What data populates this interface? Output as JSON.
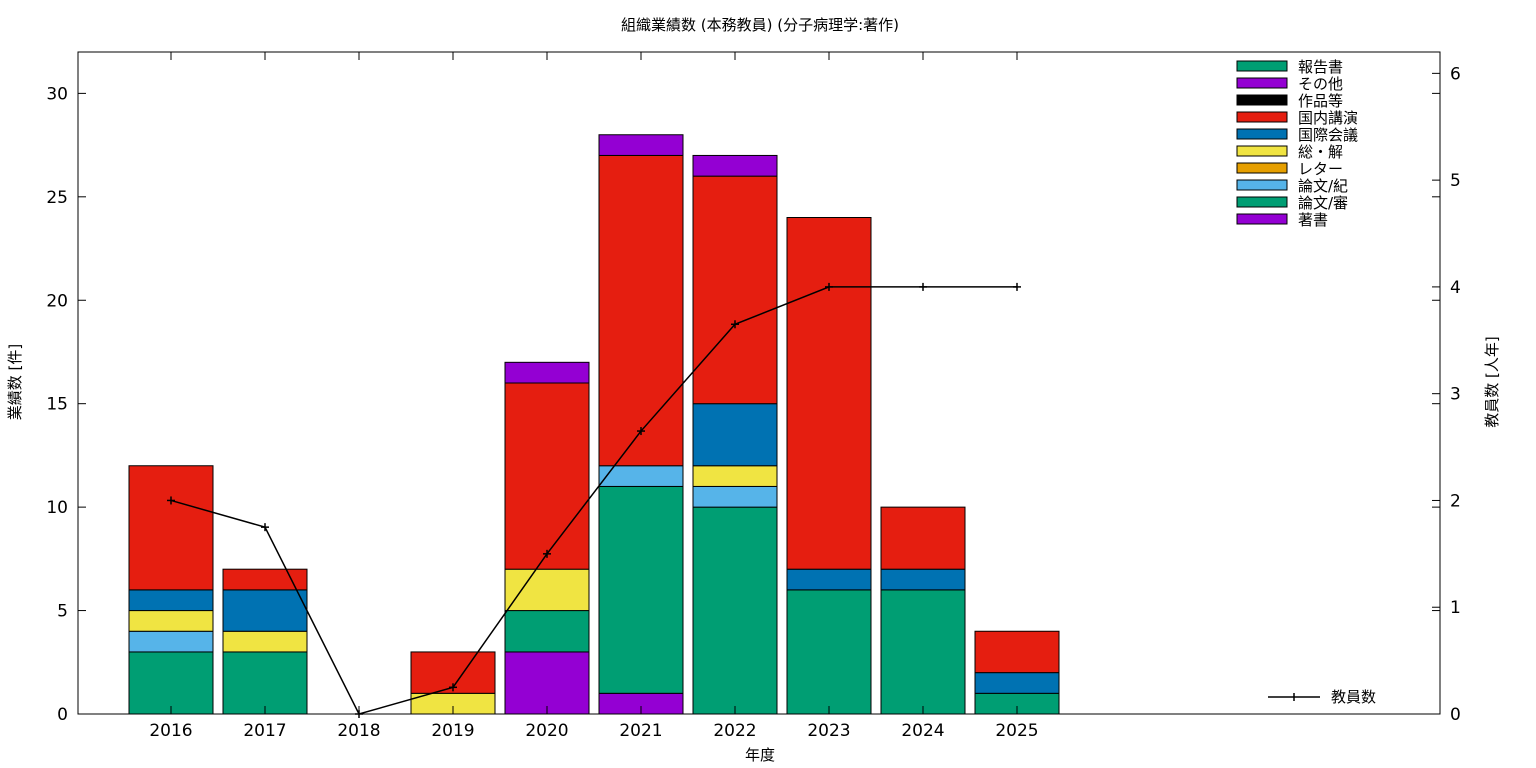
{
  "chart_data": {
    "type": "bar",
    "stacked": true,
    "title": "組織業績数 (本務教員) (分子病理学:著作)",
    "xlabel": "年度",
    "ylabel": "業績数 [件]",
    "y2label": "教員数 [人年]",
    "categories": [
      "2016",
      "2017",
      "2018",
      "2019",
      "2020",
      "2021",
      "2022",
      "2023",
      "2024",
      "2025"
    ],
    "ylim": [
      0,
      32
    ],
    "yticks": [
      0,
      5,
      10,
      15,
      20,
      25,
      30
    ],
    "y2lim": [
      0,
      6.2
    ],
    "y2ticks": [
      0,
      1,
      2,
      3,
      4,
      5,
      6
    ],
    "grid": false,
    "legend_position": "top-right",
    "series": [
      {
        "name": "著書",
        "color": "#9400d3",
        "values": [
          0,
          0,
          0,
          0,
          3,
          1,
          0,
          0,
          0,
          0
        ]
      },
      {
        "name": "論文/審",
        "color": "#009e73",
        "values": [
          3,
          3,
          0,
          0,
          2,
          10,
          10,
          6,
          6,
          1
        ]
      },
      {
        "name": "論文/紀",
        "color": "#56b4e9",
        "values": [
          1,
          0,
          0,
          0,
          0,
          1,
          1,
          0,
          0,
          0
        ]
      },
      {
        "name": "レター",
        "color": "#e69f00",
        "values": [
          0,
          0,
          0,
          0,
          0,
          0,
          0,
          0,
          0,
          0
        ]
      },
      {
        "name": "総・解",
        "color": "#f0e442",
        "values": [
          1,
          1,
          0,
          1,
          2,
          0,
          1,
          0,
          0,
          0
        ]
      },
      {
        "name": "国際会議",
        "color": "#0072b2",
        "values": [
          1,
          2,
          0,
          0,
          0,
          0,
          3,
          1,
          1,
          1
        ]
      },
      {
        "name": "国内講演",
        "color": "#e51e10",
        "values": [
          6,
          1,
          0,
          2,
          9,
          15,
          11,
          17,
          3,
          2
        ]
      },
      {
        "name": "作品等",
        "color": "#000000",
        "values": [
          0,
          0,
          0,
          0,
          0,
          0,
          0,
          0,
          0,
          0
        ]
      },
      {
        "name": "その他",
        "color": "#9400d3",
        "values": [
          0,
          0,
          0,
          0,
          1,
          1,
          1,
          0,
          0,
          0
        ]
      },
      {
        "name": "報告書",
        "color": "#009e73",
        "values": [
          0,
          0,
          0,
          0,
          0,
          0,
          0,
          0,
          0,
          0
        ]
      }
    ],
    "line_series": {
      "name": "教員数",
      "color": "#000000",
      "axis": "y2",
      "values": [
        2.0,
        1.75,
        0.0,
        0.25,
        1.5,
        2.65,
        3.65,
        4.0,
        4.0,
        4.0
      ]
    }
  }
}
